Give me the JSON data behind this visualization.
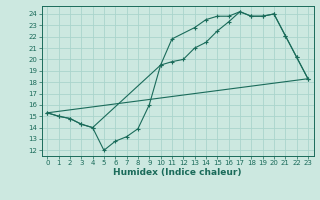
{
  "xlabel": "Humidex (Indice chaleur)",
  "bg_color": "#cce8e0",
  "grid_color": "#aad4cc",
  "line_color": "#1a6b5a",
  "spine_color": "#1a6b5a",
  "xlim": [
    -0.5,
    23.5
  ],
  "ylim": [
    11.5,
    24.7
  ],
  "yticks": [
    12,
    13,
    14,
    15,
    16,
    17,
    18,
    19,
    20,
    21,
    22,
    23,
    24
  ],
  "xticks": [
    0,
    1,
    2,
    3,
    4,
    5,
    6,
    7,
    8,
    9,
    10,
    11,
    12,
    13,
    14,
    15,
    16,
    17,
    18,
    19,
    20,
    21,
    22,
    23
  ],
  "line1_x": [
    0,
    1,
    2,
    3,
    4,
    10,
    11,
    13,
    14,
    15,
    16,
    17,
    18,
    19,
    20,
    21,
    22,
    23
  ],
  "line1_y": [
    15.3,
    15.0,
    14.8,
    14.3,
    14.0,
    19.5,
    21.8,
    22.8,
    23.5,
    23.8,
    23.8,
    24.2,
    23.8,
    23.8,
    24.0,
    22.1,
    20.2,
    18.3
  ],
  "line2_x": [
    0,
    1,
    2,
    3,
    4,
    5,
    6,
    7,
    8,
    9,
    10,
    11,
    12,
    13,
    14,
    15,
    16,
    17,
    18,
    19,
    20,
    21,
    22,
    23
  ],
  "line2_y": [
    15.3,
    15.0,
    14.8,
    14.3,
    14.0,
    12.0,
    12.8,
    13.2,
    13.9,
    16.0,
    19.5,
    19.8,
    20.0,
    21.0,
    21.5,
    22.5,
    23.3,
    24.2,
    23.8,
    23.8,
    24.0,
    22.1,
    20.2,
    18.3
  ],
  "line3_x": [
    0,
    23
  ],
  "line3_y": [
    15.3,
    18.3
  ],
  "xlabel_fontsize": 6.5,
  "tick_fontsize": 5.0
}
